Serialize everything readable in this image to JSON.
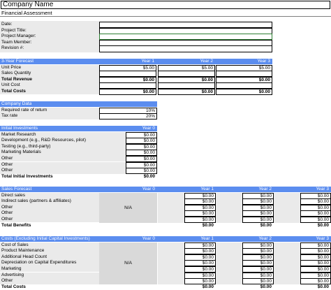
{
  "company": {
    "name": "Company Name",
    "subtitle": "Financial Assessment"
  },
  "info": {
    "labels": [
      "Date:",
      "Project Title:",
      "Project Manager:",
      "Team Member:",
      "Revision #:"
    ]
  },
  "forecast3": {
    "title": "3-Year Forecast",
    "years": [
      "Year 1",
      "Year 2",
      "Year 3"
    ],
    "rows": [
      {
        "label": "Unit Price",
        "values": [
          "$5.00",
          "$5.00",
          "$5.00"
        ],
        "bold": false
      },
      {
        "label": "Sales Quantity",
        "values": [
          "",
          "",
          ""
        ],
        "bold": false
      },
      {
        "label": "Total Revenue",
        "values": [
          "$0.00",
          "$0.00",
          "$0.00"
        ],
        "bold": true
      },
      {
        "label": "Unit Cost",
        "values": [
          "",
          "",
          ""
        ],
        "bold": false
      },
      {
        "label": "Total Costs",
        "values": [
          "$0.00",
          "$0.00",
          "$0.00"
        ],
        "bold": true
      }
    ]
  },
  "company_data": {
    "title": "Company Data",
    "rows": [
      {
        "label": "Required rate of return",
        "value": "10%"
      },
      {
        "label": "Tax rate",
        "value": "20%"
      }
    ]
  },
  "initial": {
    "title": "Initial Investments",
    "year": "Year 0",
    "rows": [
      {
        "label": "Market Research",
        "value": "$0.00"
      },
      {
        "label": "Development (e.g., R&D Resources, pilot)",
        "value": "$0.00"
      },
      {
        "label": "Testing (e.g., third-party)",
        "value": "$0.00"
      },
      {
        "label": "Marketing Materials",
        "value": "$0.00"
      },
      {
        "label": "Other",
        "value": "$0.00"
      },
      {
        "label": "Other",
        "value": "$0.00"
      },
      {
        "label": "Other",
        "value": "$0.00"
      }
    ],
    "total_label": "Total Initial Investments",
    "total_value": "$0.00"
  },
  "sales": {
    "title": "Sales Forecast",
    "years": [
      "Year 0",
      "Year 1",
      "Year 2",
      "Year 3"
    ],
    "na": "N/A",
    "rows": [
      "Direct sales",
      "Indirect sales (partners & affiliates)",
      "Other",
      "Other",
      "Other"
    ],
    "value": "$0.00",
    "total_label": "Total Benefits",
    "total_value": "$0.00"
  },
  "costs": {
    "title": "Costs (Excluding Initial Capital Investments)",
    "years": [
      "Year 0",
      "Year 1",
      "Year 2",
      "Year 3"
    ],
    "na": "N/A",
    "rows": [
      "Cost of Sales",
      "Product Maintenance",
      "Additional Head Count",
      "Depreciation on Capital Expenditures",
      "Marketing",
      "Advertising",
      "Other"
    ],
    "value": "$0.00",
    "total_label": "Total Costs",
    "total_value": "$0.00"
  }
}
